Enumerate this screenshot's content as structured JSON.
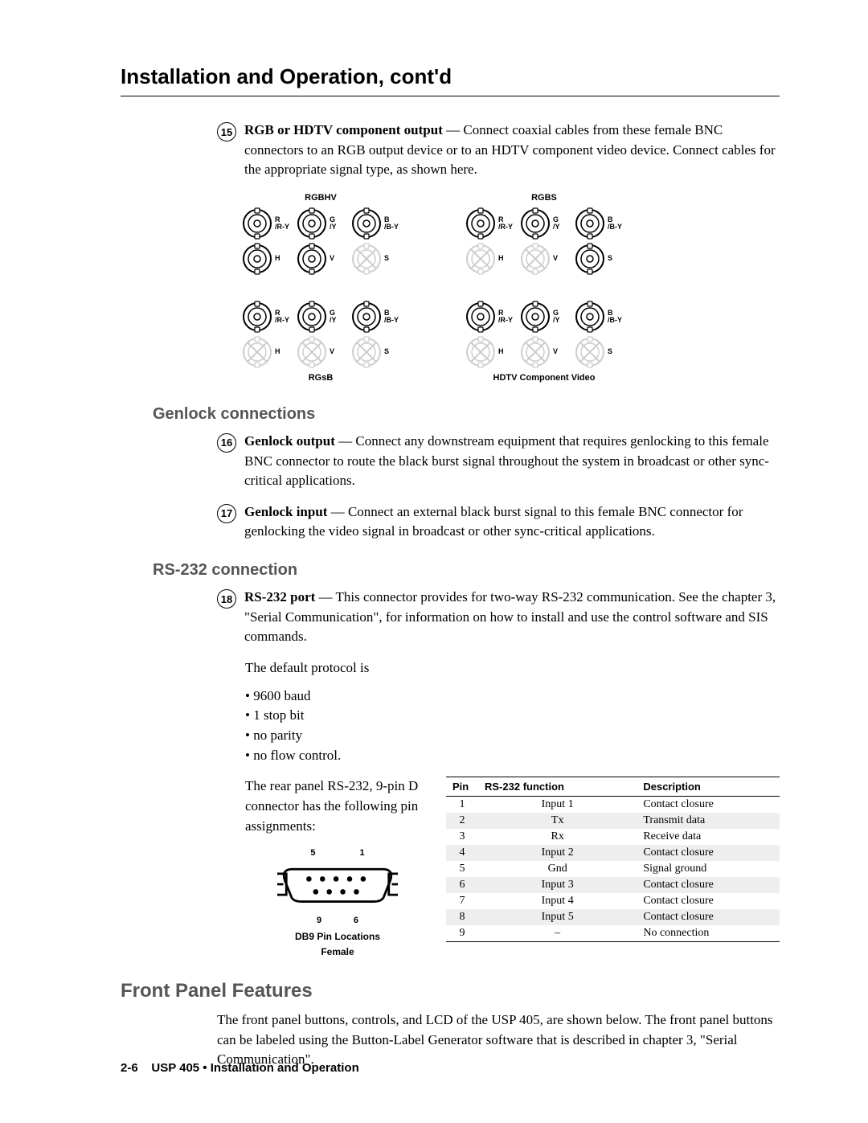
{
  "page_title": "Installation and Operation, cont'd",
  "items": {
    "n15": {
      "num": "15",
      "lead": "RGB or HDTV component output",
      "text": " —  Connect coaxial cables from these female BNC connectors to an RGB output device or to an HDTV component video device.  Connect cables for the appropriate signal type, as shown here."
    },
    "n16": {
      "num": "16",
      "lead": "Genlock output",
      "text": " —  Connect any downstream equipment that requires genlocking to this female BNC connector to route the black burst signal throughout the system in broadcast or other sync-critical applications."
    },
    "n17": {
      "num": "17",
      "lead": "Genlock input",
      "text": " —  Connect an external black burst signal to this female BNC connector for genlocking the video signal in broadcast or other sync-critical applications."
    },
    "n18": {
      "num": "18",
      "lead": "RS-232 port",
      "text": " —  This connector provides for two-way RS-232 communication.  See the chapter 3, \"Serial Communication\", for information on how to install and use the control software and SIS commands."
    }
  },
  "bnc": {
    "groups": [
      {
        "title": "RGBHV",
        "caption": "",
        "rows": [
          [
            {
              "on": true,
              "l1": "R",
              "l2": "/R-Y"
            },
            {
              "on": true,
              "l1": "G",
              "l2": "/Y"
            },
            {
              "on": true,
              "l1": "B",
              "l2": "/B-Y"
            }
          ],
          [
            {
              "on": true,
              "l1": "H",
              "l2": ""
            },
            {
              "on": true,
              "l1": "V",
              "l2": ""
            },
            {
              "on": false,
              "l1": "S",
              "l2": ""
            }
          ]
        ]
      },
      {
        "title": "RGBS",
        "caption": "",
        "rows": [
          [
            {
              "on": true,
              "l1": "R",
              "l2": "/R-Y"
            },
            {
              "on": true,
              "l1": "G",
              "l2": "/Y"
            },
            {
              "on": true,
              "l1": "B",
              "l2": "/B-Y"
            }
          ],
          [
            {
              "on": false,
              "l1": "H",
              "l2": ""
            },
            {
              "on": false,
              "l1": "V",
              "l2": ""
            },
            {
              "on": true,
              "l1": "S",
              "l2": ""
            }
          ]
        ]
      },
      {
        "title": "",
        "caption": "RGsB",
        "rows": [
          [
            {
              "on": true,
              "l1": "R",
              "l2": "/R-Y"
            },
            {
              "on": true,
              "l1": "G",
              "l2": "/Y"
            },
            {
              "on": true,
              "l1": "B",
              "l2": "/B-Y"
            }
          ],
          [
            {
              "on": false,
              "l1": "H",
              "l2": ""
            },
            {
              "on": false,
              "l1": "V",
              "l2": ""
            },
            {
              "on": false,
              "l1": "S",
              "l2": ""
            }
          ]
        ]
      },
      {
        "title": "",
        "caption": "HDTV Component Video",
        "rows": [
          [
            {
              "on": true,
              "l1": "R",
              "l2": "/R-Y"
            },
            {
              "on": true,
              "l1": "G",
              "l2": "/Y"
            },
            {
              "on": true,
              "l1": "B",
              "l2": "/B-Y"
            }
          ],
          [
            {
              "on": false,
              "l1": "H",
              "l2": ""
            },
            {
              "on": false,
              "l1": "V",
              "l2": ""
            },
            {
              "on": false,
              "l1": "S",
              "l2": ""
            }
          ]
        ]
      }
    ]
  },
  "headings": {
    "genlock": "Genlock connections",
    "rs232": "RS-232 connection",
    "front": "Front Panel Features"
  },
  "rs232_protocol_intro": "The default protocol is",
  "rs232_bullets": [
    "9600 baud",
    "1 stop bit",
    "no parity",
    "no flow control."
  ],
  "rs232_pin_intro": "The rear panel RS-232, 9-pin D connector has the following pin assignments:",
  "db9": {
    "nums_top_left": "5",
    "nums_top_right": "1",
    "nums_bot_left": "9",
    "nums_bot_right": "6",
    "caption1": "DB9 Pin Locations",
    "caption2": "Female"
  },
  "pin_table": {
    "headers": [
      "Pin",
      "RS-232 function",
      "Description"
    ],
    "rows": [
      {
        "shade": false,
        "cells": [
          "1",
          "Input 1",
          "Contact closure"
        ]
      },
      {
        "shade": true,
        "cells": [
          "2",
          "Tx",
          "Transmit data"
        ]
      },
      {
        "shade": false,
        "cells": [
          "3",
          "Rx",
          "Receive data"
        ]
      },
      {
        "shade": true,
        "cells": [
          "4",
          "Input 2",
          "Contact closure"
        ]
      },
      {
        "shade": false,
        "cells": [
          "5",
          "Gnd",
          "Signal ground"
        ]
      },
      {
        "shade": true,
        "cells": [
          "6",
          "Input 3",
          "Contact closure"
        ]
      },
      {
        "shade": false,
        "cells": [
          "7",
          "Input 4",
          "Contact closure"
        ]
      },
      {
        "shade": true,
        "cells": [
          "8",
          "Input 5",
          "Contact closure"
        ]
      },
      {
        "shade": false,
        "cells": [
          "9",
          "–",
          "No connection"
        ]
      }
    ]
  },
  "front_para": "The front panel buttons, controls, and LCD of the USP 405, are shown below.  The front panel buttons can be labeled using the Button-Label Generator software that is described in chapter 3, \"Serial Communication\".",
  "footer": {
    "page": "2-6",
    "title": "USP 405 • Installation and Operation"
  },
  "colors": {
    "heading_gray": "#555555",
    "shade_bg": "#eeeeee",
    "bnc_off": "#cdcdcd"
  }
}
